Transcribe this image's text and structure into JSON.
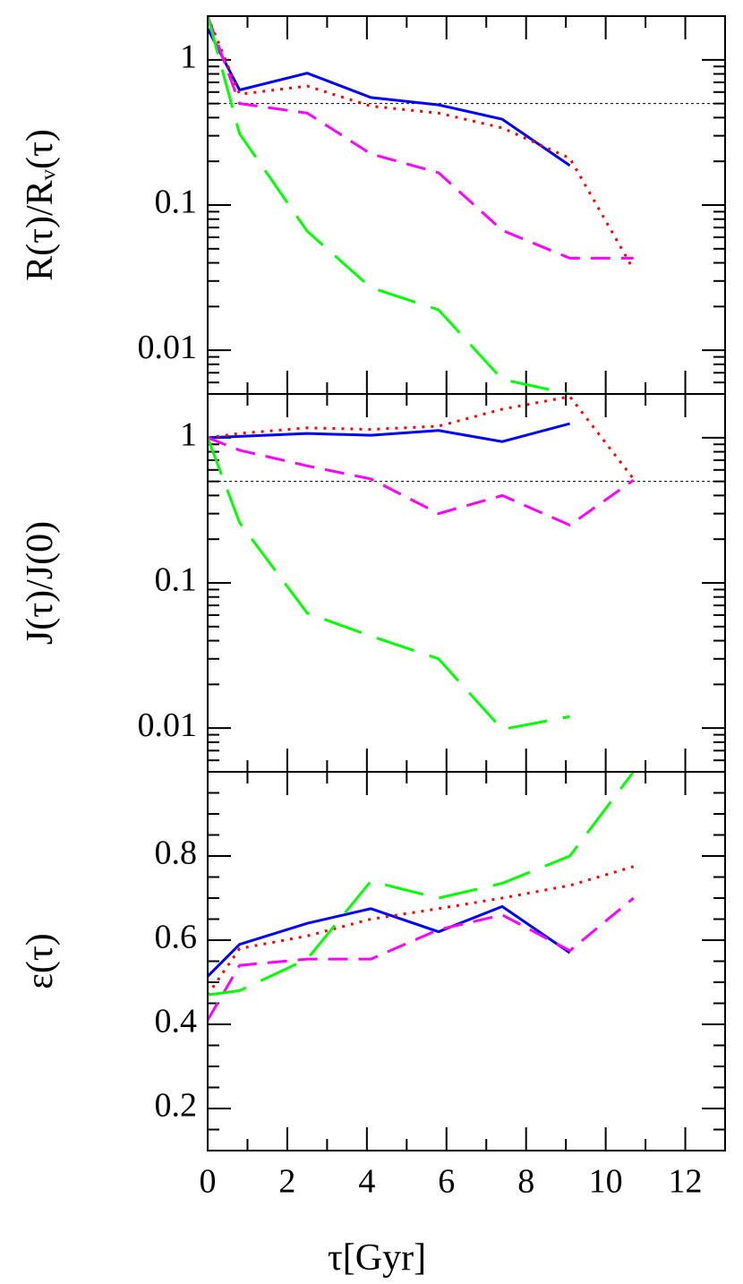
{
  "chart_data": [
    {
      "type": "line",
      "ylabel": "R(τ)/Rᵥ(τ)",
      "log_y": true,
      "x": [
        0,
        0.8,
        2.5,
        4.1,
        5.8,
        7.4,
        9.1,
        10.7
      ],
      "xlim": [
        0,
        13
      ],
      "ylim": [
        0.005,
        2
      ],
      "yticks": [
        1,
        0.1,
        0.01
      ],
      "hline": 0.5,
      "series": [
        {
          "color": "#0000ff",
          "dash": "solid",
          "values": [
            1.64,
            0.62,
            0.81,
            0.55,
            0.49,
            0.39,
            0.187,
            null
          ]
        },
        {
          "color": "#ff0000",
          "dash": "dotted",
          "values": [
            2,
            0.58,
            0.66,
            0.48,
            0.43,
            0.34,
            0.21,
            0.036
          ]
        },
        {
          "color": "#ff00ff",
          "dash": "dashed",
          "values": [
            2,
            0.5,
            0.43,
            0.225,
            0.167,
            0.067,
            0.043,
            0.043
          ]
        },
        {
          "color": "#00ff00",
          "dash": "longdash",
          "values": [
            2,
            0.31,
            0.066,
            0.027,
            0.019,
            0.0063,
            0.005,
            null
          ]
        }
      ]
    },
    {
      "type": "line",
      "ylabel": "J(τ)/J(0)",
      "log_y": true,
      "x": [
        0,
        0.8,
        2.5,
        4.1,
        5.8,
        7.4,
        9.1,
        10.7
      ],
      "xlim": [
        0,
        13
      ],
      "ylim": [
        0.005,
        2
      ],
      "yticks": [
        1,
        0.1,
        0.01
      ],
      "hline": 0.5,
      "series": [
        {
          "color": "#0000ff",
          "dash": "solid",
          "values": [
            1.0,
            1.02,
            1.07,
            1.04,
            1.12,
            0.94,
            1.25,
            null
          ]
        },
        {
          "color": "#ff0000",
          "dash": "dotted",
          "values": [
            1.0,
            1.07,
            1.17,
            1.14,
            1.2,
            1.57,
            1.92,
            0.52
          ]
        },
        {
          "color": "#ff00ff",
          "dash": "dashed",
          "values": [
            1.0,
            0.82,
            0.64,
            0.52,
            0.3,
            0.4,
            0.25,
            0.51
          ]
        },
        {
          "color": "#00ff00",
          "dash": "longdash",
          "values": [
            1.0,
            0.26,
            0.062,
            0.043,
            0.03,
            0.0098,
            0.012,
            null
          ]
        }
      ]
    },
    {
      "type": "line",
      "ylabel": "ε(τ)",
      "xlabel": "τ[Gyr]",
      "log_y": false,
      "x": [
        0,
        0.8,
        2.5,
        4.1,
        5.8,
        7.4,
        9.1,
        10.7
      ],
      "xlim": [
        0,
        13
      ],
      "xticks": [
        0,
        2,
        4,
        6,
        8,
        10,
        12
      ],
      "ylim": [
        0.1,
        1.0
      ],
      "yticks": [
        0.2,
        0.4,
        0.6,
        0.8
      ],
      "series": [
        {
          "color": "#0000ff",
          "dash": "solid",
          "values": [
            0.514,
            0.59,
            0.64,
            0.675,
            0.62,
            0.68,
            0.57,
            null
          ]
        },
        {
          "color": "#ff0000",
          "dash": "dotted",
          "values": [
            0.47,
            0.58,
            0.61,
            0.65,
            0.675,
            0.7,
            0.73,
            0.775
          ]
        },
        {
          "color": "#ff00ff",
          "dash": "dashed",
          "values": [
            0.41,
            0.54,
            0.555,
            0.555,
            0.625,
            0.66,
            0.575,
            0.7
          ]
        },
        {
          "color": "#00ff00",
          "dash": "longdash",
          "values": [
            0.47,
            0.48,
            0.555,
            0.74,
            0.7,
            0.735,
            0.8,
            1.0
          ]
        }
      ]
    }
  ]
}
